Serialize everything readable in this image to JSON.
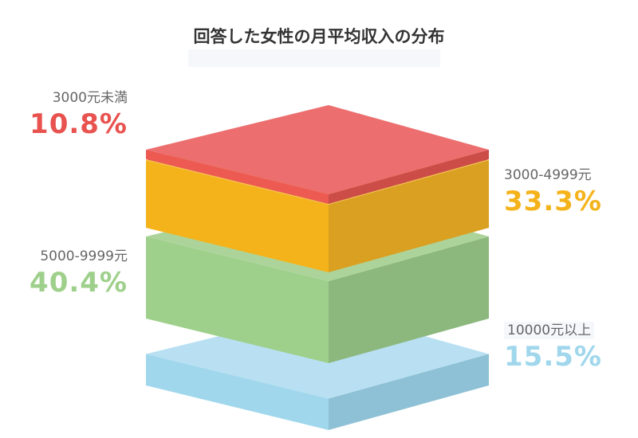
{
  "chart_data": {
    "type": "stacked-3d-layers",
    "title": "回答した女性の月平均収入の分布",
    "categories": [
      "3000元未満",
      "3000-4999元",
      "5000-9999元",
      "10000元以上"
    ],
    "values": [
      10.8,
      33.3,
      40.4,
      15.5
    ],
    "value_labels": [
      "10.8%",
      "33.3%",
      "40.4%",
      "15.5%"
    ],
    "unit": "%",
    "colors": [
      {
        "top": "#ec6e6e",
        "front": "#ec5a52",
        "side": "#cc4d48"
      },
      {
        "top": "#f5be4d",
        "front": "#f4b31b",
        "side": "#daa021"
      },
      {
        "top": "#acd49a",
        "front": "#9ed08b",
        "side": "#8cb87e"
      },
      {
        "top": "#b8e0f2",
        "front": "#a0d7ec",
        "side": "#8ec1d5"
      }
    ],
    "label_colors": [
      "#e8524f",
      "#f4b31b",
      "#9ed08b",
      "#a0d7ec"
    ]
  }
}
